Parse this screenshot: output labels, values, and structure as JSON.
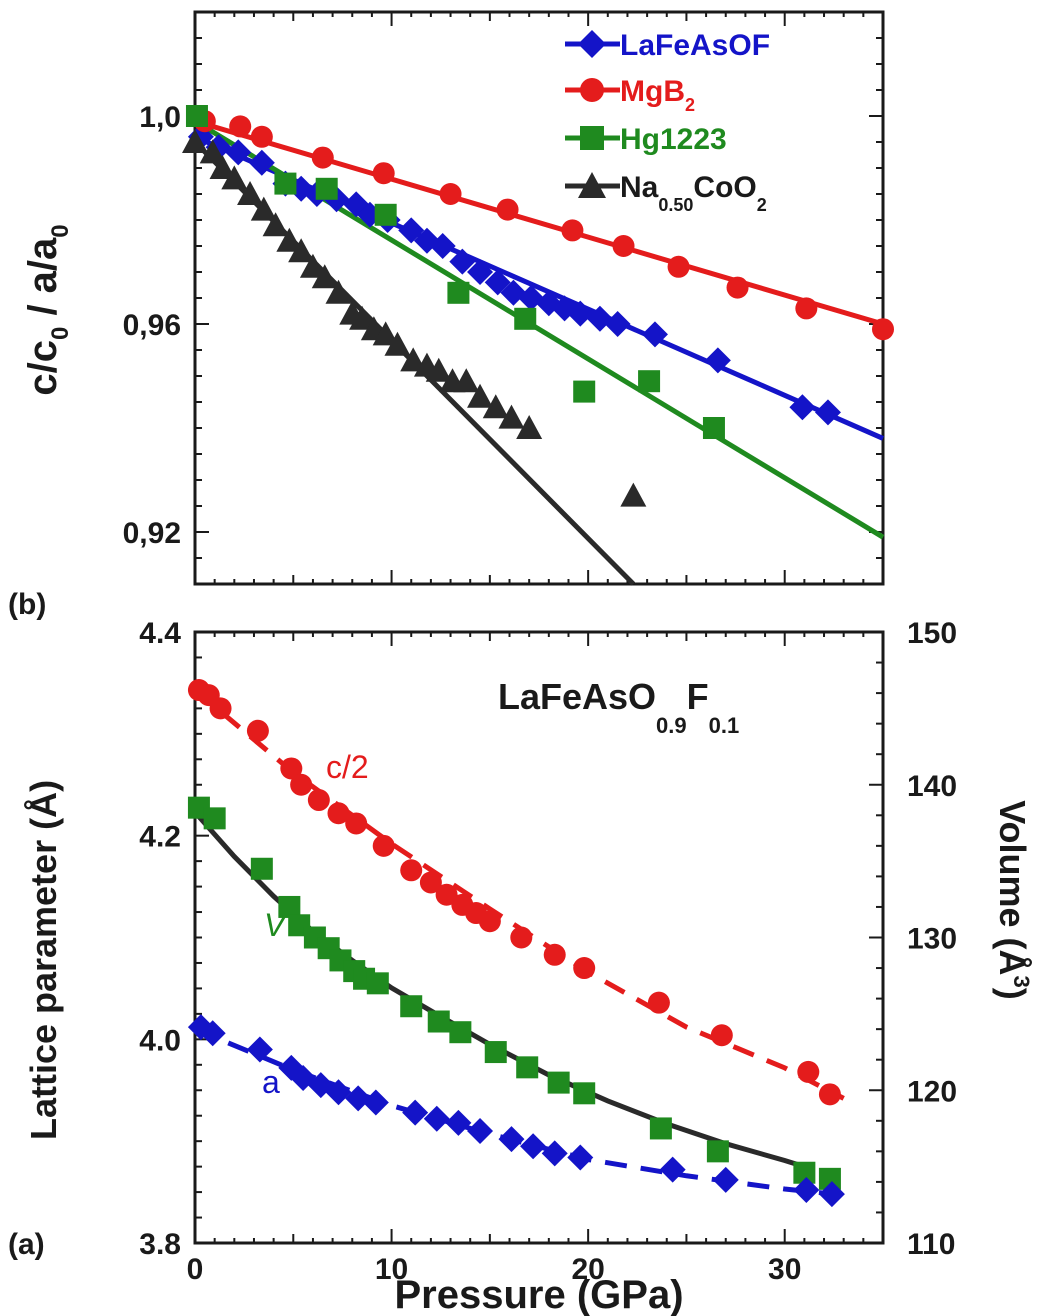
{
  "chart_data": [
    {
      "panel": "(b)",
      "type": "scatter",
      "xlabel": "",
      "ylabel": "c/c0 / a/a0",
      "xlim": [
        0,
        35
      ],
      "ylim": [
        0.91,
        1.02
      ],
      "yticks": [
        "0,92",
        "0,96",
        "1,0"
      ],
      "legend_position": "top-right",
      "series": [
        {
          "name": "LaFeAsOF",
          "color": "#1414c8",
          "marker": "diamond",
          "points": [
            [
              0.3,
              0.996
            ],
            [
              1.2,
              0.994
            ],
            [
              2.2,
              0.993
            ],
            [
              3.4,
              0.991
            ],
            [
              4.6,
              0.987
            ],
            [
              5.4,
              0.986
            ],
            [
              6.2,
              0.985
            ],
            [
              7.2,
              0.984
            ],
            [
              8.2,
              0.983
            ],
            [
              8.9,
              0.981
            ],
            [
              9.8,
              0.98
            ],
            [
              11.0,
              0.978
            ],
            [
              11.8,
              0.976
            ],
            [
              12.6,
              0.975
            ],
            [
              13.6,
              0.972
            ],
            [
              14.5,
              0.97
            ],
            [
              15.4,
              0.968
            ],
            [
              16.2,
              0.966
            ],
            [
              17.1,
              0.965
            ],
            [
              18.0,
              0.964
            ],
            [
              18.8,
              0.963
            ],
            [
              19.6,
              0.962
            ],
            [
              20.6,
              0.961
            ],
            [
              21.5,
              0.96
            ],
            [
              23.4,
              0.958
            ],
            [
              26.6,
              0.953
            ],
            [
              30.9,
              0.944
            ],
            [
              32.2,
              0.943
            ]
          ],
          "fit": [
            [
              0,
              0.996
            ],
            [
              35,
              0.938
            ]
          ]
        },
        {
          "name": "MgB2",
          "color": "#e41c1c",
          "marker": "circle",
          "points": [
            [
              0.5,
              0.999
            ],
            [
              2.3,
              0.998
            ],
            [
              3.4,
              0.996
            ],
            [
              6.5,
              0.992
            ],
            [
              9.6,
              0.989
            ],
            [
              13.0,
              0.985
            ],
            [
              15.9,
              0.982
            ],
            [
              19.2,
              0.978
            ],
            [
              21.8,
              0.975
            ],
            [
              24.6,
              0.971
            ],
            [
              27.6,
              0.967
            ],
            [
              31.1,
              0.963
            ],
            [
              35.0,
              0.959
            ]
          ],
          "fit": [
            [
              0,
              0.999
            ],
            [
              35,
              0.96
            ]
          ]
        },
        {
          "name": "Hg1223",
          "color": "#1f8a1f",
          "marker": "square",
          "points": [
            [
              0.1,
              1.0
            ],
            [
              4.6,
              0.987
            ],
            [
              6.7,
              0.986
            ],
            [
              9.7,
              0.981
            ],
            [
              13.4,
              0.966
            ],
            [
              16.8,
              0.961
            ],
            [
              19.8,
              0.947
            ],
            [
              23.1,
              0.949
            ],
            [
              26.4,
              0.94
            ]
          ],
          "fit": [
            [
              0,
              0.999
            ],
            [
              35,
              0.919
            ]
          ]
        },
        {
          "name": "Na0.50CoO2",
          "color": "#2a2a2a",
          "marker": "triangle",
          "points": [
            [
              0.0,
              0.995
            ],
            [
              0.9,
              0.993
            ],
            [
              1.4,
              0.99
            ],
            [
              2.0,
              0.988
            ],
            [
              2.8,
              0.985
            ],
            [
              3.5,
              0.982
            ],
            [
              4.1,
              0.979
            ],
            [
              4.8,
              0.976
            ],
            [
              5.4,
              0.974
            ],
            [
              6.0,
              0.971
            ],
            [
              6.6,
              0.969
            ],
            [
              7.3,
              0.966
            ],
            [
              8.0,
              0.962
            ],
            [
              8.5,
              0.961
            ],
            [
              9.1,
              0.959
            ],
            [
              9.7,
              0.958
            ],
            [
              10.3,
              0.956
            ],
            [
              11.1,
              0.953
            ],
            [
              11.8,
              0.952
            ],
            [
              12.4,
              0.951
            ],
            [
              13.1,
              0.949
            ],
            [
              13.8,
              0.949
            ],
            [
              14.5,
              0.946
            ],
            [
              15.3,
              0.944
            ],
            [
              16.1,
              0.942
            ],
            [
              17.0,
              0.94
            ],
            [
              22.3,
              0.927
            ]
          ],
          "fit": [
            [
              0,
              0.995
            ],
            [
              22.3,
              0.91
            ]
          ]
        }
      ],
      "legend": [
        "LaFeAsOF",
        "MgB2",
        "Hg1223",
        "Na0.50CoO2"
      ]
    },
    {
      "panel": "(a)",
      "type": "scatter",
      "title": "LaFeAsO0.9F0.1",
      "xlabel": "Pressure (GPa)",
      "ylabel": "Lattice parameter (Å)",
      "y2label": "Volume (Å3)",
      "xlim": [
        0,
        35
      ],
      "ylim": [
        3.8,
        4.4
      ],
      "y2lim": [
        110,
        150
      ],
      "xticks": [
        "0",
        "10",
        "20",
        "30"
      ],
      "yticks": [
        "3.8",
        "4.0",
        "4.2",
        "4.4"
      ],
      "y2ticks": [
        "110",
        "120",
        "130",
        "140",
        "150"
      ],
      "series": [
        {
          "name": "c/2",
          "axis": "left",
          "color": "#e41c1c",
          "marker": "circle",
          "points": [
            [
              0.2,
              4.343
            ],
            [
              0.7,
              4.338
            ],
            [
              1.3,
              4.325
            ],
            [
              3.2,
              4.303
            ],
            [
              4.9,
              4.266
            ],
            [
              5.4,
              4.25
            ],
            [
              6.3,
              4.235
            ],
            [
              7.3,
              4.222
            ],
            [
              8.2,
              4.212
            ],
            [
              9.6,
              4.19
            ],
            [
              11.0,
              4.166
            ],
            [
              12.0,
              4.154
            ],
            [
              12.8,
              4.142
            ],
            [
              13.6,
              4.132
            ],
            [
              14.3,
              4.124
            ],
            [
              15.0,
              4.116
            ],
            [
              16.6,
              4.1
            ],
            [
              18.3,
              4.083
            ],
            [
              19.8,
              4.07
            ],
            [
              23.6,
              4.036
            ],
            [
              26.8,
              4.004
            ],
            [
              31.2,
              3.968
            ],
            [
              32.3,
              3.946
            ]
          ],
          "fit": [
            [
              0,
              4.343
            ],
            [
              5,
              4.262
            ],
            [
              10,
              4.192
            ],
            [
              15,
              4.128
            ],
            [
              20,
              4.066
            ],
            [
              25,
              4.012
            ],
            [
              30,
              3.972
            ],
            [
              33,
              3.942
            ]
          ]
        },
        {
          "name": "V",
          "axis": "right",
          "color": "#1f8a1f",
          "marker": "square",
          "points": [
            [
              0.2,
              138.5
            ],
            [
              1.0,
              137.8
            ],
            [
              3.4,
              134.5
            ],
            [
              4.8,
              132.0
            ],
            [
              5.3,
              130.8
            ],
            [
              6.1,
              130.0
            ],
            [
              6.8,
              129.3
            ],
            [
              7.4,
              128.5
            ],
            [
              8.1,
              127.8
            ],
            [
              8.6,
              127.3
            ],
            [
              9.3,
              127.0
            ],
            [
              11.0,
              125.5
            ],
            [
              12.4,
              124.5
            ],
            [
              13.5,
              123.8
            ],
            [
              15.3,
              122.5
            ],
            [
              16.9,
              121.5
            ],
            [
              18.5,
              120.5
            ],
            [
              19.8,
              119.8
            ],
            [
              23.7,
              117.5
            ],
            [
              26.6,
              116.0
            ],
            [
              31.0,
              114.6
            ],
            [
              32.3,
              114.2
            ]
          ],
          "fit": [
            [
              0,
              138.2
            ],
            [
              2,
              135.3
            ],
            [
              4,
              132.7
            ],
            [
              6,
              130.4
            ],
            [
              8,
              128.5
            ],
            [
              10,
              126.7
            ],
            [
              12,
              125.2
            ],
            [
              15,
              123.0
            ],
            [
              18,
              121.0
            ],
            [
              21,
              119.3
            ],
            [
              24,
              117.8
            ],
            [
              27,
              116.5
            ],
            [
              30,
              115.4
            ],
            [
              31,
              115.0
            ]
          ]
        },
        {
          "name": "a",
          "axis": "left",
          "color": "#1414c8",
          "marker": "diamond",
          "points": [
            [
              0.3,
              4.012
            ],
            [
              0.9,
              4.006
            ],
            [
              3.3,
              3.99
            ],
            [
              4.9,
              3.972
            ],
            [
              5.5,
              3.962
            ],
            [
              6.4,
              3.955
            ],
            [
              7.3,
              3.948
            ],
            [
              8.3,
              3.942
            ],
            [
              9.2,
              3.938
            ],
            [
              11.2,
              3.928
            ],
            [
              12.3,
              3.922
            ],
            [
              13.4,
              3.918
            ],
            [
              14.5,
              3.91
            ],
            [
              16.1,
              3.902
            ],
            [
              17.2,
              3.895
            ],
            [
              18.3,
              3.888
            ],
            [
              19.6,
              3.884
            ],
            [
              24.3,
              3.872
            ],
            [
              27.0,
              3.862
            ],
            [
              31.1,
              3.852
            ],
            [
              32.4,
              3.848
            ]
          ],
          "fit": [
            [
              0,
              4.01
            ],
            [
              5,
              3.97
            ],
            [
              10,
              3.935
            ],
            [
              15,
              3.907
            ],
            [
              20,
              3.882
            ],
            [
              25,
              3.866
            ],
            [
              30,
              3.853
            ],
            [
              33,
              3.847
            ]
          ]
        }
      ],
      "annotations": {
        "c_half": "c/2",
        "V": "V",
        "a": "a"
      },
      "panel_label": "(a)"
    }
  ],
  "labels": {
    "panel_b": "(b)",
    "panel_a": "(a)",
    "top_title_main": "LaFeAsO",
    "top_title_sub1": "0.9",
    "top_title_mid": "F",
    "top_title_sub2": "0.1",
    "legend_1": "LaFeAsOF",
    "legend_2_main": "MgB",
    "legend_2_sub": "2",
    "legend_3": "Hg1223",
    "legend_4_main": "Na",
    "legend_4_sub1": "0.50",
    "legend_4_mid": "CoO",
    "legend_4_sub2": "2",
    "ylabel_b_main": "c/c",
    "ylabel_b_sub": "0",
    "ylabel_b_mid": " / a/a",
    "ylabel_b_sub2": "0",
    "ylabel_a": "Lattice parameter (Å)",
    "y2label_main": "Volume (Å",
    "y2label_sup": "3",
    "y2label_end": ")",
    "xlabel": "Pressure (GPa)",
    "ann_c": "c/2",
    "ann_V": "V",
    "ann_a": "a"
  },
  "colors": {
    "blue": "#1414c8",
    "red": "#e41c1c",
    "green": "#1f8a1f",
    "black": "#2a2a2a"
  }
}
